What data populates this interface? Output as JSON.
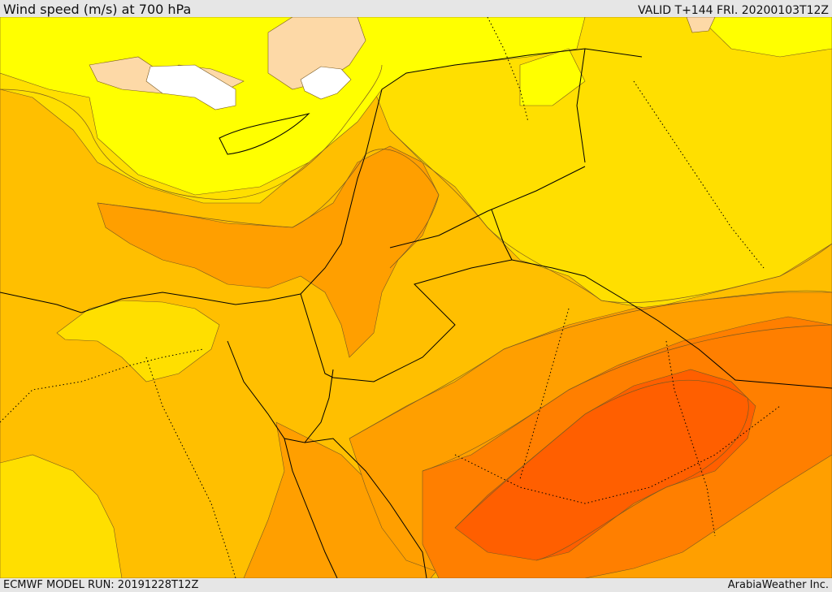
{
  "header": {
    "title": "Wind speed (m/s) at 700 hPa",
    "valid_time": "VALID T+144 FRI. 20200103T12Z"
  },
  "footer": {
    "model_run": "ECMWF MODEL RUN: 20191228T12Z",
    "credit": "ArabiaWeather Inc."
  },
  "map": {
    "variable": "wind speed at 700 hPa",
    "region": "Eastern Mediterranean / Levant / Northern Arabia",
    "colors": {
      "white": "#ffffff",
      "peach": "#fdd9a7",
      "yellow": "#ffff00",
      "gold": "#ffdf00",
      "amber": "#ffbf00",
      "orange": "#ff9f00",
      "dark_orange": "#ff7f00",
      "red_orange": "#ff5f00",
      "border_line": "#000000",
      "contour_line": "#7a5a20"
    }
  }
}
